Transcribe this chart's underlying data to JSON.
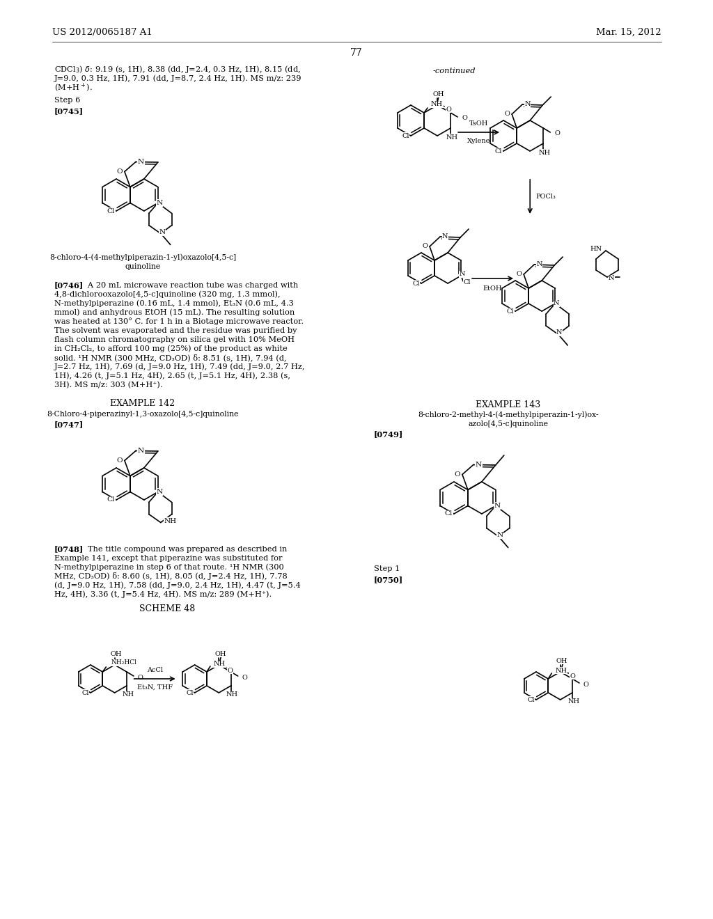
{
  "bg_color": "#ffffff",
  "header_left": "US 2012/0065187 A1",
  "header_right": "Mar. 15, 2012",
  "page_number": "77"
}
